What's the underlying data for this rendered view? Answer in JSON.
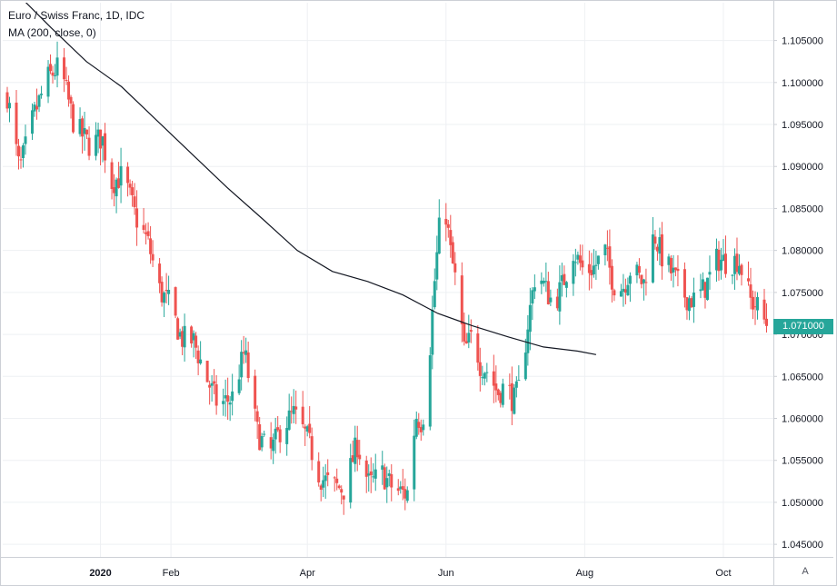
{
  "legend": {
    "title": "Euro / Swiss Franc, 1D, IDC",
    "indicator": "MA (200, close, 0)"
  },
  "last_price_label": "1.071000",
  "auto_scale_label": "A",
  "colors": {
    "up": "#26a69a",
    "down": "#ef5350",
    "ma_line": "#131722",
    "grid": "#eef0f3",
    "axis_text": "#131722",
    "border": "#cdd0d6",
    "last_price_bg": "#26a69a"
  },
  "chart_data": {
    "type": "candlestick",
    "title": "Euro / Swiss Franc, 1D, IDC",
    "x_tick_labels": [
      "2020",
      "Feb",
      "Apr",
      "Jun",
      "Aug",
      "Oct"
    ],
    "y_tick_labels": [
      "1.105000",
      "1.100000",
      "1.095000",
      "1.090000",
      "1.085000",
      "1.080000",
      "1.075000",
      "1.070000",
      "1.065000",
      "1.060000",
      "1.055000",
      "1.050000",
      "1.045000"
    ],
    "ylim": [
      1.0435,
      1.1095
    ],
    "grid": true,
    "last_price": 1.071,
    "series": [
      {
        "name": "MA (200, close, 0)",
        "type": "line",
        "points": [
          [
            "2019-11-26",
            1.1105
          ],
          [
            "2019-12-15",
            1.1065
          ],
          [
            "2020-01-04",
            1.1025
          ],
          [
            "2020-01-24",
            1.0995
          ],
          [
            "2020-02-13",
            1.0955
          ],
          [
            "2020-03-04",
            1.0915
          ],
          [
            "2020-03-24",
            1.0875
          ],
          [
            "2020-04-13",
            1.0838
          ],
          [
            "2020-05-03",
            1.08
          ],
          [
            "2020-05-23",
            1.0775
          ],
          [
            "2020-06-12",
            1.0763
          ],
          [
            "2020-07-02",
            1.0747
          ],
          [
            "2020-07-22",
            1.0725
          ],
          [
            "2020-08-11",
            1.071
          ],
          [
            "2020-08-31",
            1.0697
          ],
          [
            "2020-09-20",
            1.0685
          ],
          [
            "2020-10-10",
            1.068
          ],
          [
            "2020-10-20",
            1.0676
          ]
        ]
      },
      {
        "name": "EURCHF",
        "type": "candlestick",
        "anchors": [
          [
            "2019-11-20",
            1.0985
          ],
          [
            "2019-11-27",
            1.0895
          ],
          [
            "2019-12-05",
            1.096
          ],
          [
            "2019-12-13",
            1.1005
          ],
          [
            "2019-12-20",
            1.102
          ],
          [
            "2019-12-28",
            1.095
          ],
          [
            "2020-01-06",
            1.0925
          ],
          [
            "2020-01-13",
            1.0935
          ],
          [
            "2020-01-18",
            1.088
          ],
          [
            "2020-01-25",
            1.089
          ],
          [
            "2020-02-01",
            1.084
          ],
          [
            "2020-02-08",
            1.081
          ],
          [
            "2020-02-15",
            1.075
          ],
          [
            "2020-02-20",
            1.0738
          ],
          [
            "2020-02-27",
            1.0695
          ],
          [
            "2020-03-05",
            1.0692
          ],
          [
            "2020-03-12",
            1.065
          ],
          [
            "2020-03-19",
            1.0615
          ],
          [
            "2020-03-27",
            1.0625
          ],
          [
            "2020-04-03",
            1.068
          ],
          [
            "2020-04-10",
            1.0585
          ],
          [
            "2020-04-17",
            1.0555
          ],
          [
            "2020-04-24",
            1.059
          ],
          [
            "2020-05-01",
            1.0605
          ],
          [
            "2020-05-09",
            1.0575
          ],
          [
            "2020-05-16",
            1.053
          ],
          [
            "2020-05-23",
            1.052
          ],
          [
            "2020-05-30",
            1.0515
          ],
          [
            "2020-06-06",
            1.057
          ],
          [
            "2020-06-13",
            1.052
          ],
          [
            "2020-06-20",
            1.0535
          ],
          [
            "2020-06-27",
            1.0515
          ],
          [
            "2020-07-04",
            1.051
          ],
          [
            "2020-07-07",
            1.052
          ],
          [
            "2020-07-09",
            1.0605
          ],
          [
            "2020-07-13",
            1.0595
          ],
          [
            "2020-07-16",
            1.064
          ],
          [
            "2020-07-20",
            1.076
          ],
          [
            "2020-07-23",
            1.083
          ],
          [
            "2020-07-26",
            1.0855
          ],
          [
            "2020-07-29",
            1.08
          ],
          [
            "2020-08-03",
            1.074
          ],
          [
            "2020-08-06",
            1.068
          ],
          [
            "2020-08-11",
            1.07
          ],
          [
            "2020-08-15",
            1.0665
          ],
          [
            "2020-08-20",
            1.0655
          ],
          [
            "2020-08-25",
            1.063
          ],
          [
            "2020-08-30",
            1.064
          ],
          [
            "2020-09-03",
            1.062
          ],
          [
            "2020-09-07",
            1.064
          ],
          [
            "2020-09-11",
            1.071
          ],
          [
            "2020-09-16",
            1.078
          ],
          [
            "2020-09-21",
            1.0755
          ],
          [
            "2020-09-26",
            1.0735
          ],
          [
            "2020-10-01",
            1.076
          ],
          [
            "2020-10-07",
            1.08
          ],
          [
            "2020-10-13",
            1.0775
          ],
          [
            "2020-10-19",
            1.078
          ],
          [
            "2020-10-25",
            1.08
          ],
          [
            "2020-10-30",
            1.076
          ],
          [
            "2020-11-04",
            1.0755
          ],
          [
            "2020-11-09",
            1.078
          ],
          [
            "2020-11-16",
            1.076
          ],
          [
            "2020-11-22",
            1.082
          ],
          [
            "2020-11-27",
            1.079
          ],
          [
            "2020-12-03",
            1.077
          ],
          [
            "2020-12-10",
            1.0745
          ],
          [
            "2020-12-16",
            1.074
          ],
          [
            "2020-12-22",
            1.076
          ],
          [
            "2020-12-28",
            1.079
          ],
          [
            "2021-01-04",
            1.0785
          ],
          [
            "2021-01-09",
            1.079
          ],
          [
            "2021-01-16",
            1.074
          ],
          [
            "2021-01-21",
            1.073
          ],
          [
            "2021-01-25",
            1.071
          ]
        ]
      }
    ]
  }
}
